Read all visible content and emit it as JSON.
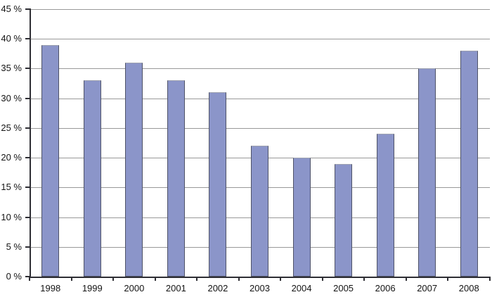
{
  "chart_data": {
    "type": "bar",
    "title": "",
    "xlabel": "",
    "ylabel": "",
    "categories": [
      "1998",
      "1999",
      "2000",
      "2001",
      "2002",
      "2003",
      "2004",
      "2005",
      "2006",
      "2007",
      "2008"
    ],
    "values": [
      39,
      33,
      36,
      33,
      31,
      22,
      20,
      19,
      24,
      35,
      38
    ],
    "unit": "%",
    "ylim": [
      0,
      45
    ],
    "ytick_values": [
      0,
      5,
      10,
      15,
      20,
      25,
      30,
      35,
      40,
      45
    ],
    "ytick_labels": [
      "0 %",
      "5 %",
      "10 %",
      "15 %",
      "20 %",
      "25 %",
      "30 %",
      "35 %",
      "40 %",
      "45 %"
    ],
    "grid": true,
    "legend_position": "none",
    "colors": {
      "bar_fill": "#8B95C9",
      "bar_border": "#4F5368",
      "bar_border_top": "#9FA3B0",
      "gridline": "#999999",
      "axis": "#2E2E34",
      "text": "#141414",
      "background": "#FFFFFF"
    }
  }
}
